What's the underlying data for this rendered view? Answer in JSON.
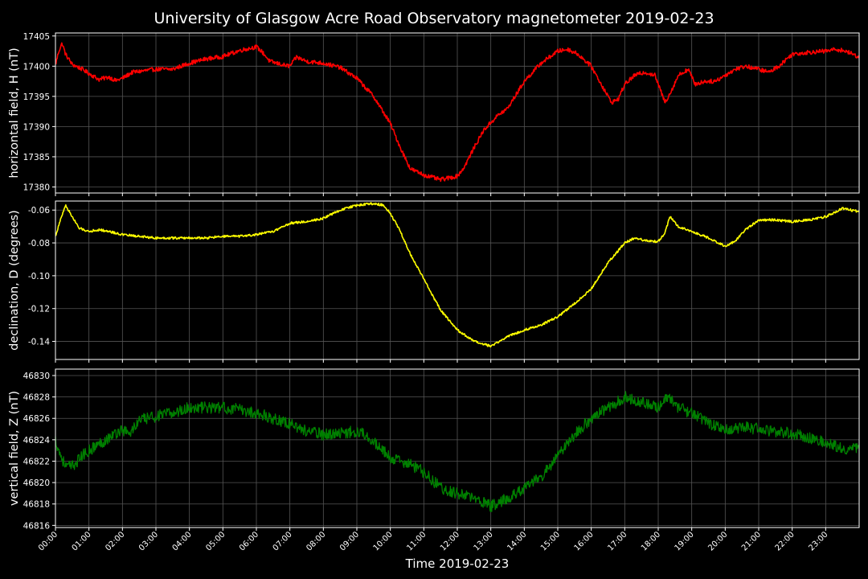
{
  "title": "University of Glasgow Acre Road Observatory magnetometer 2019-02-23",
  "chart_data": {
    "type": "line",
    "title": "University of Glasgow Acre Road Observatory magnetometer 2019-02-23",
    "xlabel": "Time 2019-02-23",
    "x_ticks": [
      "00:00",
      "01:00",
      "02:00",
      "03:00",
      "04:00",
      "05:00",
      "06:00",
      "07:00",
      "08:00",
      "09:00",
      "10:00",
      "11:00",
      "12:00",
      "13:00",
      "14:00",
      "15:00",
      "16:00",
      "17:00",
      "18:00",
      "19:00",
      "20:00",
      "21:00",
      "22:00",
      "23:00"
    ],
    "xlim_hours": [
      0,
      24
    ],
    "grid": true,
    "panels": [
      {
        "ylabel": "horizontal field, H (nT)",
        "color": "#ff0000",
        "ylim": [
          17379,
          17405.5
        ],
        "y_ticks": [
          17380,
          17385,
          17390,
          17395,
          17400,
          17405
        ],
        "tick_decimals": 0,
        "noise": 0.35,
        "series": [
          [
            0.0,
            17400.2
          ],
          [
            0.1,
            17402.5
          ],
          [
            0.2,
            17403.8
          ],
          [
            0.3,
            17402.0
          ],
          [
            0.5,
            17400.3
          ],
          [
            0.8,
            17399.5
          ],
          [
            1.0,
            17398.8
          ],
          [
            1.3,
            17397.8
          ],
          [
            1.6,
            17398.2
          ],
          [
            1.8,
            17397.6
          ],
          [
            2.0,
            17398.0
          ],
          [
            2.3,
            17399.0
          ],
          [
            2.6,
            17399.2
          ],
          [
            3.0,
            17399.5
          ],
          [
            3.5,
            17399.5
          ],
          [
            4.0,
            17400.5
          ],
          [
            4.5,
            17401.2
          ],
          [
            5.0,
            17401.6
          ],
          [
            5.5,
            17402.6
          ],
          [
            6.0,
            17403.2
          ],
          [
            6.2,
            17402.2
          ],
          [
            6.4,
            17400.8
          ],
          [
            6.8,
            17400.2
          ],
          [
            7.0,
            17400.0
          ],
          [
            7.2,
            17401.5
          ],
          [
            7.5,
            17400.8
          ],
          [
            8.0,
            17400.5
          ],
          [
            8.5,
            17399.8
          ],
          [
            9.0,
            17398.0
          ],
          [
            9.5,
            17395.0
          ],
          [
            10.0,
            17390.5
          ],
          [
            10.3,
            17386.5
          ],
          [
            10.6,
            17383.0
          ],
          [
            11.0,
            17382.0
          ],
          [
            11.5,
            17381.2
          ],
          [
            12.0,
            17381.8
          ],
          [
            12.2,
            17383.2
          ],
          [
            12.5,
            17386.5
          ],
          [
            12.8,
            17389.5
          ],
          [
            13.2,
            17391.8
          ],
          [
            13.5,
            17393.0
          ],
          [
            14.0,
            17397.5
          ],
          [
            14.5,
            17400.5
          ],
          [
            15.0,
            17402.5
          ],
          [
            15.3,
            17402.8
          ],
          [
            15.6,
            17402.0
          ],
          [
            16.0,
            17400.0
          ],
          [
            16.3,
            17397.0
          ],
          [
            16.6,
            17394.0
          ],
          [
            16.8,
            17394.5
          ],
          [
            17.0,
            17397.0
          ],
          [
            17.3,
            17398.5
          ],
          [
            17.6,
            17399.0
          ],
          [
            17.9,
            17398.5
          ],
          [
            18.2,
            17394.0
          ],
          [
            18.4,
            17396.0
          ],
          [
            18.6,
            17398.5
          ],
          [
            18.9,
            17399.5
          ],
          [
            19.1,
            17397.0
          ],
          [
            19.4,
            17397.5
          ],
          [
            19.7,
            17397.5
          ],
          [
            20.0,
            17398.5
          ],
          [
            20.3,
            17399.5
          ],
          [
            20.6,
            17400.0
          ],
          [
            21.0,
            17399.5
          ],
          [
            21.3,
            17399.0
          ],
          [
            21.6,
            17400.0
          ],
          [
            22.0,
            17402.0
          ],
          [
            22.5,
            17402.3
          ],
          [
            23.0,
            17402.5
          ],
          [
            23.3,
            17402.8
          ],
          [
            23.6,
            17402.5
          ],
          [
            24.0,
            17401.5
          ]
        ]
      },
      {
        "ylabel": "declination, D (degrees)",
        "color": "#ffff00",
        "ylim": [
          -0.151,
          -0.0545
        ],
        "y_ticks": [
          -0.14,
          -0.12,
          -0.1,
          -0.08,
          -0.06
        ],
        "tick_decimals": 2,
        "noise": 0.0007,
        "series": [
          [
            0.0,
            -0.076
          ],
          [
            0.15,
            -0.066
          ],
          [
            0.3,
            -0.057
          ],
          [
            0.5,
            -0.064
          ],
          [
            0.7,
            -0.071
          ],
          [
            1.0,
            -0.073
          ],
          [
            1.3,
            -0.072
          ],
          [
            1.6,
            -0.073
          ],
          [
            2.0,
            -0.075
          ],
          [
            2.5,
            -0.076
          ],
          [
            3.0,
            -0.077
          ],
          [
            3.5,
            -0.077
          ],
          [
            4.0,
            -0.077
          ],
          [
            4.5,
            -0.077
          ],
          [
            5.0,
            -0.076
          ],
          [
            5.5,
            -0.076
          ],
          [
            6.0,
            -0.075
          ],
          [
            6.5,
            -0.073
          ],
          [
            7.0,
            -0.068
          ],
          [
            7.5,
            -0.067
          ],
          [
            8.0,
            -0.065
          ],
          [
            8.5,
            -0.06
          ],
          [
            9.0,
            -0.057
          ],
          [
            9.5,
            -0.056
          ],
          [
            9.8,
            -0.057
          ],
          [
            10.0,
            -0.062
          ],
          [
            10.3,
            -0.073
          ],
          [
            10.6,
            -0.087
          ],
          [
            11.0,
            -0.102
          ],
          [
            11.5,
            -0.121
          ],
          [
            12.0,
            -0.133
          ],
          [
            12.5,
            -0.14
          ],
          [
            13.0,
            -0.143
          ],
          [
            13.5,
            -0.137
          ],
          [
            14.0,
            -0.133
          ],
          [
            14.5,
            -0.13
          ],
          [
            15.0,
            -0.125
          ],
          [
            15.5,
            -0.117
          ],
          [
            16.0,
            -0.108
          ],
          [
            16.5,
            -0.092
          ],
          [
            17.0,
            -0.08
          ],
          [
            17.3,
            -0.077
          ],
          [
            17.7,
            -0.079
          ],
          [
            18.0,
            -0.079
          ],
          [
            18.2,
            -0.074
          ],
          [
            18.35,
            -0.064
          ],
          [
            18.6,
            -0.07
          ],
          [
            19.0,
            -0.073
          ],
          [
            19.5,
            -0.077
          ],
          [
            20.0,
            -0.082
          ],
          [
            20.3,
            -0.079
          ],
          [
            20.6,
            -0.072
          ],
          [
            21.0,
            -0.066
          ],
          [
            21.5,
            -0.066
          ],
          [
            22.0,
            -0.067
          ],
          [
            22.5,
            -0.066
          ],
          [
            23.0,
            -0.064
          ],
          [
            23.5,
            -0.059
          ],
          [
            24.0,
            -0.061
          ]
        ]
      },
      {
        "ylabel": "vertical field, Z (nT)",
        "color": "#008000",
        "ylim": [
          46815.8,
          46830.6
        ],
        "y_ticks": [
          46816,
          46818,
          46820,
          46822,
          46824,
          46826,
          46828,
          46830
        ],
        "tick_decimals": 0,
        "noise": 0.55,
        "series": [
          [
            0.0,
            46824.0
          ],
          [
            0.1,
            46823.0
          ],
          [
            0.3,
            46821.5
          ],
          [
            0.5,
            46821.5
          ],
          [
            0.8,
            46822.5
          ],
          [
            1.0,
            46823.0
          ],
          [
            1.5,
            46824.0
          ],
          [
            2.0,
            46825.0
          ],
          [
            2.2,
            46824.5
          ],
          [
            2.5,
            46825.8
          ],
          [
            3.0,
            46826.2
          ],
          [
            3.5,
            46826.5
          ],
          [
            4.0,
            46827.0
          ],
          [
            4.5,
            46827.0
          ],
          [
            5.0,
            46827.0
          ],
          [
            5.5,
            46826.8
          ],
          [
            6.0,
            46826.5
          ],
          [
            6.5,
            46826.0
          ],
          [
            7.0,
            46825.5
          ],
          [
            7.5,
            46824.8
          ],
          [
            8.0,
            46824.5
          ],
          [
            8.5,
            46824.6
          ],
          [
            9.0,
            46824.8
          ],
          [
            9.3,
            46824.5
          ],
          [
            9.6,
            46823.5
          ],
          [
            10.0,
            46822.3
          ],
          [
            10.5,
            46821.8
          ],
          [
            11.0,
            46821.0
          ],
          [
            11.5,
            46819.5
          ],
          [
            12.0,
            46819.0
          ],
          [
            12.5,
            46818.5
          ],
          [
            13.0,
            46817.8
          ],
          [
            13.5,
            46818.5
          ],
          [
            14.0,
            46819.5
          ],
          [
            14.5,
            46820.5
          ],
          [
            15.0,
            46822.5
          ],
          [
            15.5,
            46824.5
          ],
          [
            16.0,
            46826.0
          ],
          [
            16.5,
            46827.0
          ],
          [
            17.0,
            46828.0
          ],
          [
            17.5,
            46827.5
          ],
          [
            18.0,
            46827.0
          ],
          [
            18.3,
            46828.0
          ],
          [
            18.6,
            46827.0
          ],
          [
            19.0,
            46826.5
          ],
          [
            19.5,
            46825.5
          ],
          [
            20.0,
            46825.0
          ],
          [
            20.5,
            46825.2
          ],
          [
            21.0,
            46825.0
          ],
          [
            21.5,
            46824.8
          ],
          [
            22.0,
            46824.6
          ],
          [
            22.5,
            46824.2
          ],
          [
            23.0,
            46823.8
          ],
          [
            23.5,
            46823.2
          ],
          [
            24.0,
            46823.2
          ]
        ]
      }
    ]
  }
}
